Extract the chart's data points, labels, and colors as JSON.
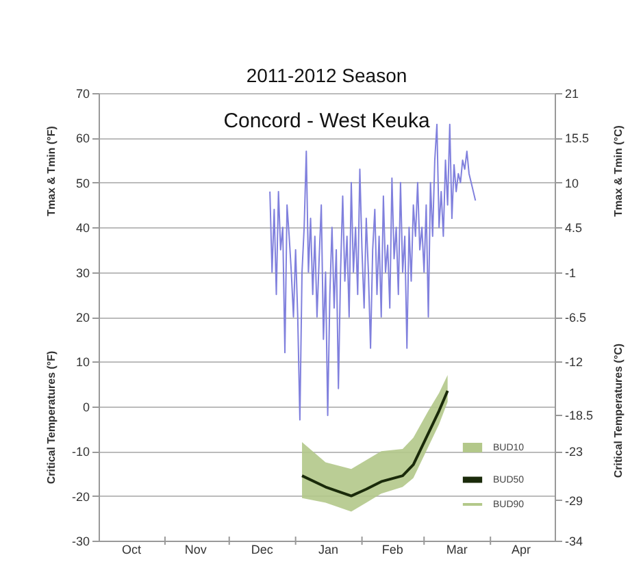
{
  "chart_data": {
    "type": "line",
    "title": "2011-2012 Season",
    "subtitle": "Concord - West Keuka",
    "ylabel": "Tmax & Tmin (°F)",
    "y2label": "Tmax & Tmin (°C)",
    "annotations": [
      "Critical Temperatures (°F)",
      "Critical Temperatures (°C)",
      "BUD10",
      "BUD90"
    ],
    "xlim": [
      "2011-10-01",
      "2012-05-01"
    ],
    "xticks": [
      {
        "value": "2011-11-01",
        "label": null
      },
      {
        "value": "2011-12-01",
        "label": null
      },
      {
        "value": "2012-01-01",
        "label": null
      },
      {
        "value": "2012-02-01",
        "label": null
      },
      {
        "value": "2012-03-01",
        "label": null
      },
      {
        "value": "2012-04-01",
        "label": null
      },
      {
        "value": "2011-10-16",
        "label": "Oct"
      },
      {
        "value": "2011-11-15",
        "label": "Nov"
      },
      {
        "value": "2011-12-16",
        "label": "Dec"
      },
      {
        "value": "2012-01-16",
        "label": "Jan"
      },
      {
        "value": "2012-02-15",
        "label": "Feb"
      },
      {
        "value": "2012-03-16",
        "label": "Mar"
      },
      {
        "value": "2012-04-15",
        "label": "Apr"
      }
    ],
    "ylim": [
      -30,
      70
    ],
    "yticks": [
      -30,
      -20,
      -10,
      0,
      10,
      20,
      30,
      40,
      50,
      60,
      70
    ],
    "y2lim": [
      -34,
      21
    ],
    "y2ticks": [
      21,
      15.5,
      10,
      4.5,
      -1,
      -6.5,
      -12,
      -18.5,
      -23,
      -29,
      -34
    ],
    "grid": "y",
    "legend": "bottom right",
    "series": [
      {
        "color": "#8080dd",
        "line_style": "solid",
        "x": [
          "2011-12-20",
          "2011-12-21",
          "2011-12-22",
          "2011-12-23",
          "2011-12-24",
          "2011-12-25",
          "2011-12-26",
          "2011-12-27",
          "2011-12-28",
          "2011-12-29",
          "2011-12-30",
          "2011-12-31",
          "2012-01-01",
          "2012-01-02",
          "2012-01-03",
          "2012-01-04",
          "2012-01-05",
          "2012-01-06",
          "2012-01-07",
          "2012-01-08",
          "2012-01-09",
          "2012-01-10",
          "2012-01-11",
          "2012-01-12",
          "2012-01-13",
          "2012-01-14",
          "2012-01-15",
          "2012-01-16",
          "2012-01-17",
          "2012-01-18",
          "2012-01-19",
          "2012-01-20",
          "2012-01-21",
          "2012-01-22",
          "2012-01-23",
          "2012-01-24",
          "2012-01-25",
          "2012-01-26",
          "2012-01-27",
          "2012-01-28",
          "2012-01-29",
          "2012-01-30",
          "2012-01-31",
          "2012-02-01",
          "2012-02-02",
          "2012-02-03",
          "2012-02-04",
          "2012-02-05",
          "2012-02-06",
          "2012-02-07",
          "2012-02-08",
          "2012-02-09",
          "2012-02-10",
          "2012-02-11",
          "2012-02-12",
          "2012-02-13",
          "2012-02-14",
          "2012-02-15",
          "2012-02-16",
          "2012-02-17",
          "2012-02-18",
          "2012-02-19",
          "2012-02-20",
          "2012-02-21",
          "2012-02-22",
          "2012-02-23",
          "2012-02-24",
          "2012-02-25",
          "2012-02-26",
          "2012-02-27",
          "2012-02-28",
          "2012-02-29",
          "2012-03-01",
          "2012-03-02",
          "2012-03-03",
          "2012-03-04",
          "2012-03-05",
          "2012-03-06",
          "2012-03-07",
          "2012-03-08",
          "2012-03-09",
          "2012-03-10",
          "2012-03-11",
          "2012-03-12",
          "2012-03-13",
          "2012-03-14",
          "2012-03-15",
          "2012-03-16",
          "2012-03-17",
          "2012-03-18",
          "2012-03-19",
          "2012-03-20",
          "2012-03-21",
          "2012-03-22",
          "2012-03-23",
          "2012-03-24",
          "2012-03-25"
        ],
        "values": [
          48,
          30,
          44,
          25,
          48,
          35,
          40,
          12,
          45,
          38,
          30,
          20,
          35,
          20,
          -3,
          30,
          40,
          57,
          30,
          42,
          25,
          38,
          20,
          33,
          45,
          15,
          30,
          -2,
          25,
          40,
          22,
          35,
          4,
          30,
          47,
          28,
          38,
          20,
          50,
          30,
          40,
          25,
          53,
          35,
          22,
          42,
          30,
          13,
          35,
          44,
          25,
          38,
          20,
          47,
          30,
          36,
          22,
          51,
          33,
          40,
          25,
          50,
          30,
          38,
          13,
          40,
          28,
          45,
          38,
          50,
          35,
          40,
          30,
          45,
          20,
          50,
          38,
          55,
          63,
          40,
          48,
          38,
          55,
          45,
          63,
          42,
          54,
          48,
          52,
          50,
          55,
          53,
          57,
          52,
          50,
          48,
          46
        ]
      },
      {
        "name": "BUD50",
        "color": "#1a2a0a",
        "line_style": "solid",
        "x": [
          "2012-01-04",
          "2012-01-15",
          "2012-01-27",
          "2012-02-03",
          "2012-02-10",
          "2012-02-20",
          "2012-02-25",
          "2012-03-03",
          "2012-03-08",
          "2012-03-12"
        ],
        "values": [
          -15.5,
          -18,
          -20,
          -18.5,
          -16.8,
          -15.5,
          -13,
          -6,
          -1,
          3.5
        ],
        "upper": [
          -8,
          -12.5,
          -14,
          -12,
          -10,
          -9.5,
          -7,
          -1,
          3,
          7
        ],
        "lower": [
          -20.5,
          -21.5,
          -23.5,
          -21.5,
          -19.5,
          -18,
          -16,
          -9,
          -4,
          1
        ]
      }
    ]
  }
}
